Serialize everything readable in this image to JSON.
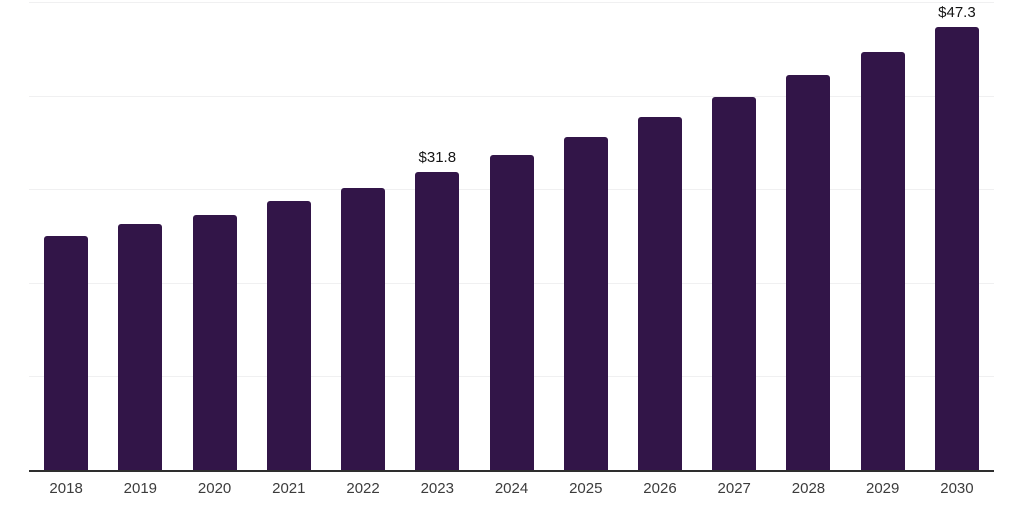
{
  "chart_data": {
    "type": "bar",
    "categories": [
      "2018",
      "2019",
      "2020",
      "2021",
      "2022",
      "2023",
      "2024",
      "2025",
      "2026",
      "2027",
      "2028",
      "2029",
      "2030"
    ],
    "values": [
      25.0,
      26.3,
      27.2,
      28.7,
      30.1,
      31.8,
      33.7,
      35.6,
      37.7,
      39.9,
      42.2,
      44.7,
      47.3
    ],
    "bar_labels": [
      "",
      "",
      "",
      "",
      "",
      "$31.8",
      "",
      "",
      "",
      "",
      "",
      "",
      "$47.3"
    ],
    "ylim": [
      0,
      50
    ],
    "gridline_values": [
      10,
      20,
      30,
      40,
      50
    ],
    "grid": "horizontal",
    "legend": "none",
    "colors": {
      "bar": "#321548",
      "gridline": "#f0f0f1",
      "axis_line": "#2e2e2e",
      "value_label": "#141414",
      "tick_label": "#3c3c3c",
      "background": "#ffffff"
    }
  }
}
